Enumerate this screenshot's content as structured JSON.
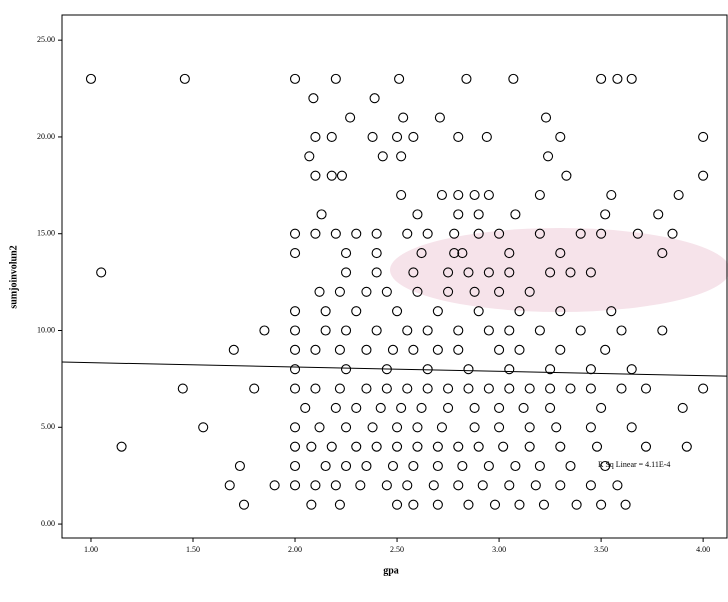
{
  "chart_data": {
    "type": "scatter",
    "x_label": "gpa",
    "y_label": "sumjoinvolun2",
    "annotation": "R Sq Linear = 4.11E-4",
    "x": [
      1.0,
      1.46,
      2.0,
      2.2,
      2.51,
      2.84,
      3.07,
      3.5,
      3.58,
      3.65,
      2.09,
      2.39,
      2.27,
      2.53,
      2.71,
      3.23,
      2.1,
      2.18,
      2.38,
      2.5,
      2.58,
      2.8,
      2.94,
      3.3,
      4.0,
      2.07,
      2.43,
      2.52,
      3.24,
      2.1,
      2.18,
      2.23,
      3.33,
      4.0,
      2.52,
      2.72,
      2.8,
      2.88,
      2.95,
      3.2,
      3.55,
      3.88,
      2.13,
      2.6,
      2.8,
      2.9,
      3.08,
      3.52,
      3.78,
      2.0,
      2.1,
      2.2,
      2.3,
      2.4,
      2.55,
      2.65,
      2.78,
      2.9,
      3.0,
      3.2,
      3.4,
      3.5,
      3.68,
      3.85,
      2.0,
      2.25,
      2.4,
      2.62,
      2.78,
      2.82,
      3.05,
      3.3,
      3.8,
      1.05,
      2.25,
      2.4,
      2.58,
      2.75,
      2.85,
      2.95,
      3.05,
      3.25,
      3.35,
      3.45,
      2.12,
      2.22,
      2.35,
      2.45,
      2.6,
      2.75,
      2.88,
      3.0,
      3.15,
      2.0,
      2.15,
      2.3,
      2.5,
      2.7,
      2.9,
      3.1,
      3.3,
      3.55,
      1.85,
      2.0,
      2.15,
      2.25,
      2.4,
      2.55,
      2.65,
      2.8,
      2.95,
      3.05,
      3.2,
      3.4,
      3.6,
      3.8,
      1.7,
      2.0,
      2.1,
      2.22,
      2.35,
      2.48,
      2.58,
      2.7,
      2.8,
      3.0,
      3.1,
      3.3,
      3.52,
      2.0,
      2.25,
      2.45,
      2.65,
      2.85,
      3.05,
      3.25,
      3.45,
      3.65,
      1.45,
      1.8,
      2.0,
      2.1,
      2.22,
      2.35,
      2.45,
      2.55,
      2.65,
      2.75,
      2.85,
      2.95,
      3.05,
      3.15,
      3.25,
      3.35,
      3.45,
      3.6,
      3.72,
      4.0,
      2.05,
      2.2,
      2.3,
      2.42,
      2.52,
      2.62,
      2.75,
      2.88,
      3.0,
      3.12,
      3.25,
      3.5,
      3.9,
      1.55,
      2.0,
      2.12,
      2.25,
      2.38,
      2.5,
      2.6,
      2.72,
      2.88,
      3.0,
      3.15,
      3.28,
      3.45,
      3.65,
      1.15,
      2.0,
      2.08,
      2.18,
      2.3,
      2.4,
      2.5,
      2.6,
      2.7,
      2.8,
      2.9,
      3.02,
      3.15,
      3.3,
      3.48,
      3.72,
      3.92,
      1.73,
      2.0,
      2.15,
      2.25,
      2.35,
      2.48,
      2.58,
      2.7,
      2.82,
      2.95,
      3.08,
      3.2,
      3.35,
      3.52,
      1.68,
      1.9,
      2.0,
      2.1,
      2.2,
      2.32,
      2.45,
      2.55,
      2.68,
      2.8,
      2.92,
      3.05,
      3.18,
      3.3,
      3.45,
      3.58,
      1.75,
      2.08,
      2.22,
      2.5,
      2.58,
      2.7,
      2.85,
      2.98,
      3.1,
      3.22,
      3.38,
      3.5,
      3.62
    ],
    "values": [
      23,
      23,
      23,
      23,
      23,
      23,
      23,
      23,
      23,
      23,
      22,
      22,
      21,
      21,
      21,
      21,
      20,
      20,
      20,
      20,
      20,
      20,
      20,
      20,
      20,
      19,
      19,
      19,
      19,
      18,
      18,
      18,
      18,
      18,
      17,
      17,
      17,
      17,
      17,
      17,
      17,
      17,
      16,
      16,
      16,
      16,
      16,
      16,
      16,
      15,
      15,
      15,
      15,
      15,
      15,
      15,
      15,
      15,
      15,
      15,
      15,
      15,
      15,
      15,
      14,
      14,
      14,
      14,
      14,
      14,
      14,
      14,
      14,
      13,
      13,
      13,
      13,
      13,
      13,
      13,
      13,
      13,
      13,
      13,
      12,
      12,
      12,
      12,
      12,
      12,
      12,
      12,
      12,
      11,
      11,
      11,
      11,
      11,
      11,
      11,
      11,
      11,
      10,
      10,
      10,
      10,
      10,
      10,
      10,
      10,
      10,
      10,
      10,
      10,
      10,
      10,
      9,
      9,
      9,
      9,
      9,
      9,
      9,
      9,
      9,
      9,
      9,
      9,
      9,
      8,
      8,
      8,
      8,
      8,
      8,
      8,
      8,
      8,
      7,
      7,
      7,
      7,
      7,
      7,
      7,
      7,
      7,
      7,
      7,
      7,
      7,
      7,
      7,
      7,
      7,
      7,
      7,
      7,
      6,
      6,
      6,
      6,
      6,
      6,
      6,
      6,
      6,
      6,
      6,
      6,
      6,
      5,
      5,
      5,
      5,
      5,
      5,
      5,
      5,
      5,
      5,
      5,
      5,
      5,
      5,
      4,
      4,
      4,
      4,
      4,
      4,
      4,
      4,
      4,
      4,
      4,
      4,
      4,
      4,
      4,
      4,
      4,
      3,
      3,
      3,
      3,
      3,
      3,
      3,
      3,
      3,
      3,
      3,
      3,
      3,
      3,
      2,
      2,
      2,
      2,
      2,
      2,
      2,
      2,
      2,
      2,
      2,
      2,
      2,
      2,
      2,
      2,
      1,
      1,
      1,
      1,
      1,
      1,
      1,
      1,
      1,
      1,
      1,
      1,
      1
    ],
    "fit_line": {
      "x": [
        0.858,
        4.117
      ],
      "y": [
        8.37,
        7.64
      ]
    },
    "xlim": [
      0.858,
      4.117
    ],
    "ylim": [
      -0.72,
      26.3
    ],
    "xticks": [
      {
        "value": 1,
        "label": "1.00"
      },
      {
        "value": 1.5,
        "label": "1.50"
      },
      {
        "value": 2,
        "label": "2.00"
      },
      {
        "value": 2.5,
        "label": "2.50"
      },
      {
        "value": 3,
        "label": "3.00"
      },
      {
        "value": 3.5,
        "label": "3.50"
      },
      {
        "value": 4,
        "label": "4.00"
      }
    ],
    "yticks": [
      {
        "value": 0,
        "label": "0.00"
      },
      {
        "value": 5,
        "label": "5.00"
      },
      {
        "value": 10,
        "label": "10.00"
      },
      {
        "value": 15,
        "label": "15.00"
      },
      {
        "value": 20,
        "label": "20.00"
      },
      {
        "value": 25,
        "label": "25.00"
      }
    ],
    "marker_color": "#000000",
    "line_color": "#000000"
  }
}
